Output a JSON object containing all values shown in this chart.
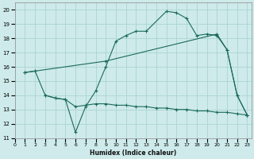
{
  "bg_color": "#ceeaea",
  "line_color": "#1a6b5a",
  "grid_color": "#aad4d4",
  "line1_x": [
    1,
    2,
    3,
    4,
    5,
    6,
    7,
    8,
    9,
    10,
    11,
    12,
    13,
    15,
    16,
    17,
    18,
    19,
    20,
    21,
    22,
    23
  ],
  "line1_y": [
    15.6,
    15.7,
    14.0,
    13.8,
    13.7,
    11.4,
    13.2,
    14.3,
    16.0,
    17.8,
    18.2,
    18.5,
    18.5,
    19.9,
    19.8,
    19.4,
    18.2,
    18.3,
    18.2,
    17.2,
    14.0,
    12.6
  ],
  "line2_x": [
    1,
    2,
    9,
    20,
    21,
    22,
    23
  ],
  "line2_y": [
    15.6,
    15.7,
    16.4,
    18.3,
    17.2,
    14.0,
    12.6
  ],
  "line3_x": [
    3,
    4,
    5,
    6,
    7,
    8,
    9,
    10,
    11,
    12,
    13,
    14,
    15,
    16,
    17,
    18,
    19,
    20,
    21,
    22,
    23
  ],
  "line3_y": [
    14.0,
    13.8,
    13.7,
    13.2,
    13.3,
    13.4,
    13.4,
    13.3,
    13.3,
    13.2,
    13.2,
    13.1,
    13.1,
    13.0,
    13.0,
    12.9,
    12.9,
    12.8,
    12.8,
    12.7,
    12.6
  ],
  "xlim": [
    0,
    23.4
  ],
  "ylim": [
    11.0,
    20.5
  ],
  "yticks": [
    11,
    12,
    13,
    14,
    15,
    16,
    17,
    18,
    19,
    20
  ],
  "xticks": [
    0,
    1,
    2,
    3,
    4,
    5,
    6,
    7,
    8,
    9,
    10,
    11,
    12,
    13,
    14,
    15,
    16,
    17,
    18,
    19,
    20,
    21,
    22,
    23
  ],
  "xlabel": "Humidex (Indice chaleur)"
}
